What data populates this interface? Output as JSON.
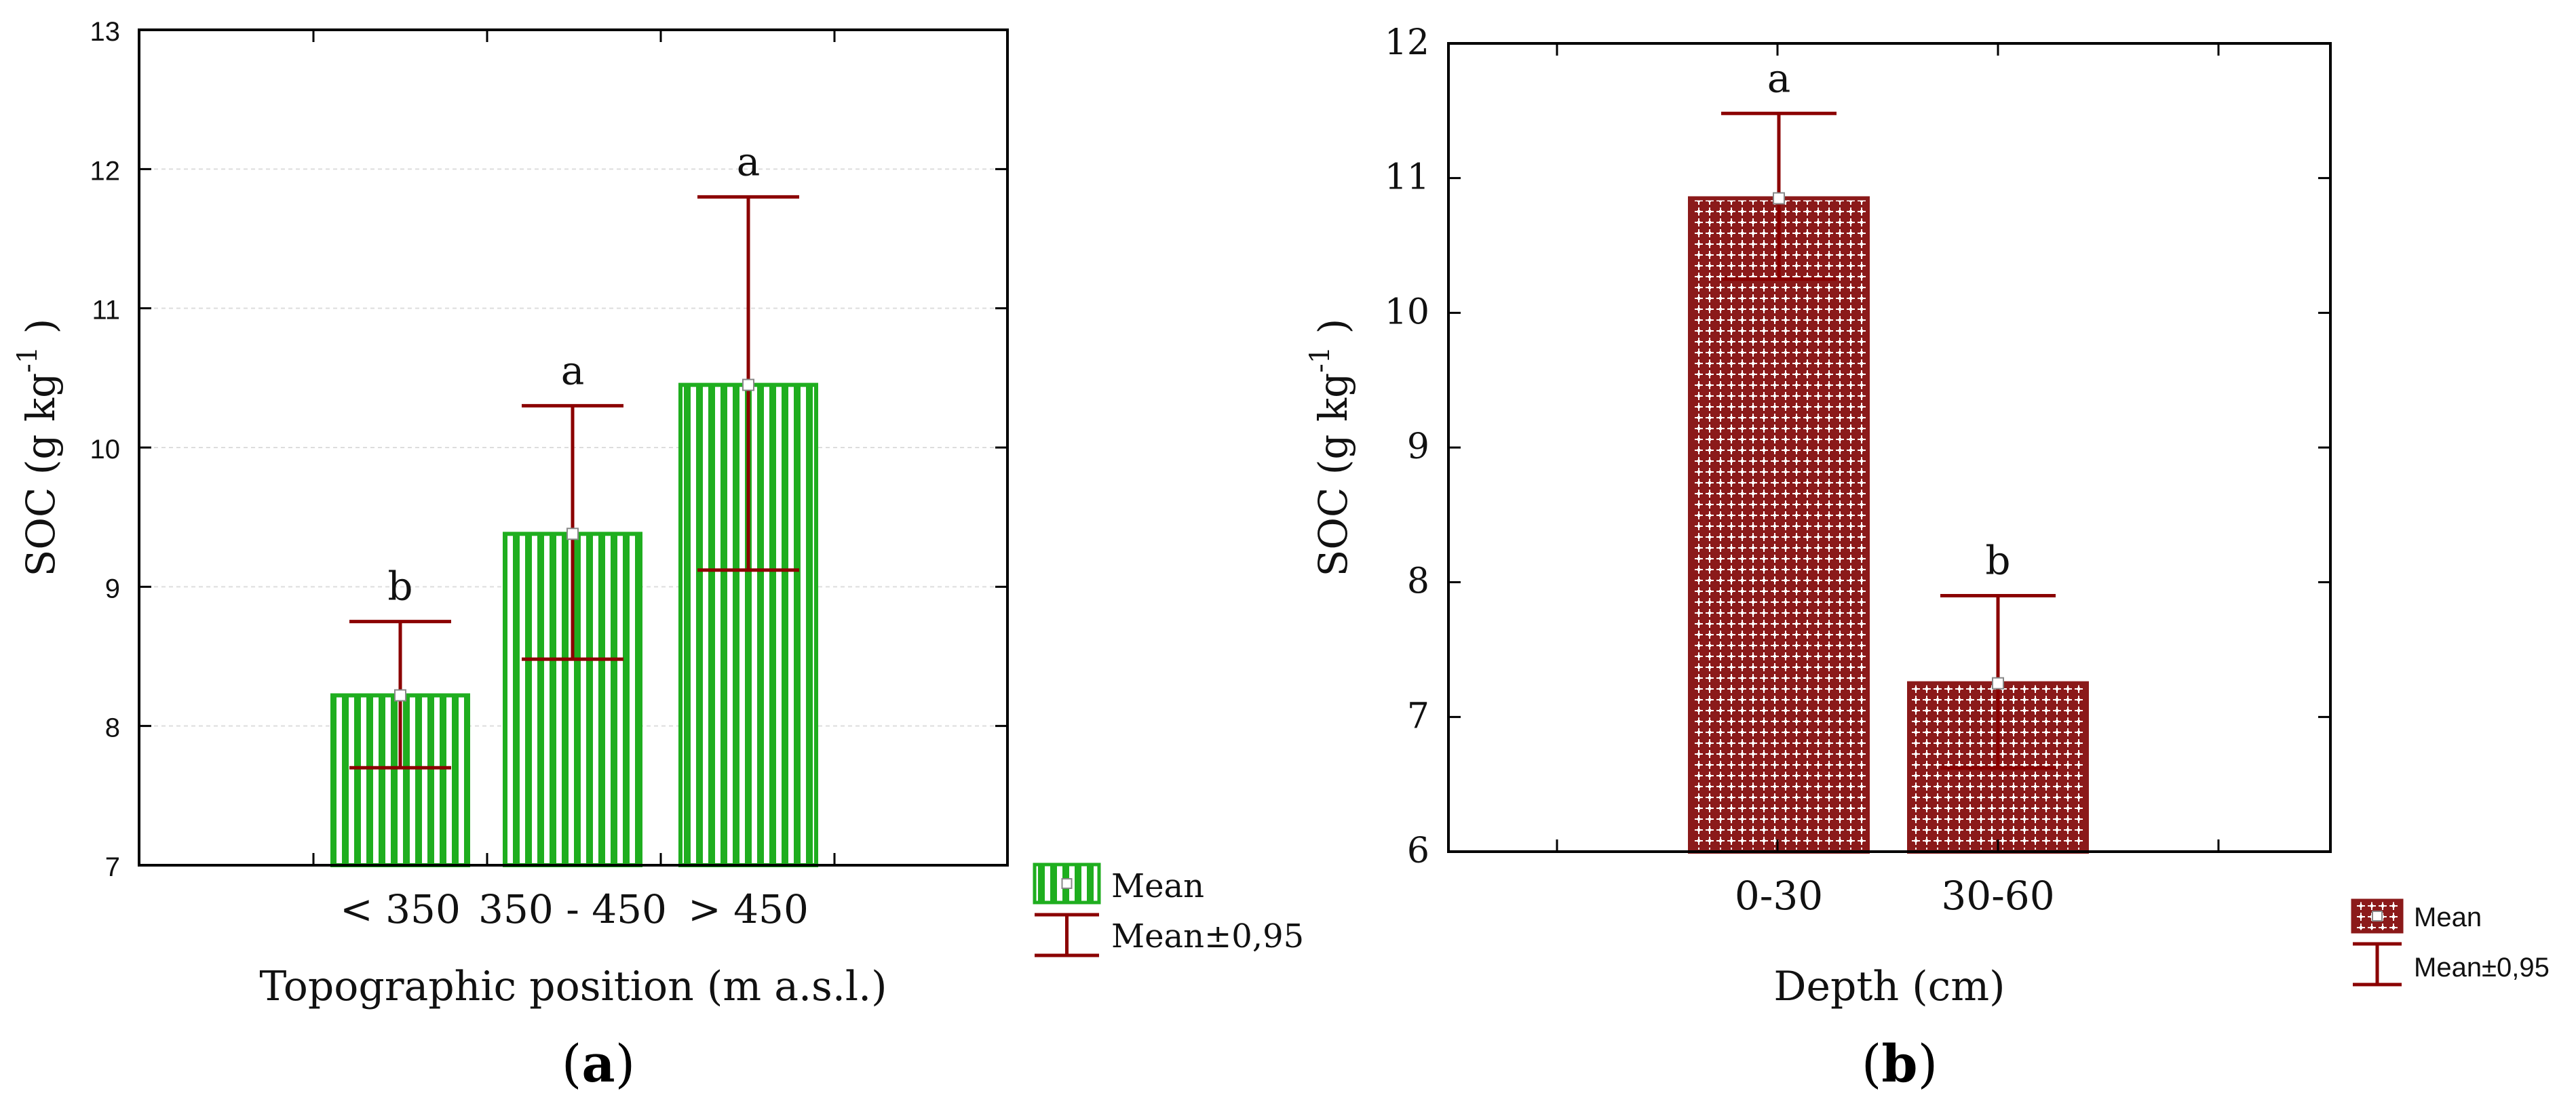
{
  "chart_data": [
    {
      "panel": "a",
      "type": "bar",
      "title": "",
      "xlabel": "Topographic position (m a.s.l.)",
      "ylabel": "SOC (g kg",
      "ylabel_sup": "-1",
      "ylabel_close": ")",
      "ylim": [
        7,
        13
      ],
      "yticks": [
        "7",
        "8",
        "9",
        "10",
        "11",
        "12",
        "13"
      ],
      "categories": [
        "< 350",
        "350 - 450",
        "> 450"
      ],
      "series": [
        {
          "name": "Mean",
          "values": [
            8.22,
            9.38,
            10.45
          ],
          "ci_low": [
            7.7,
            8.48,
            9.12
          ],
          "ci_high": [
            8.75,
            10.3,
            11.8
          ],
          "letters": [
            "b",
            "a",
            "a"
          ]
        }
      ],
      "legend": [
        "Mean",
        "Mean±0,95"
      ],
      "panel_label": "a",
      "bar_color": "#1fae1f",
      "error_color": "#8b0000",
      "grid": true
    },
    {
      "panel": "b",
      "type": "bar",
      "title": "",
      "xlabel": "Depth (cm)",
      "ylabel": "SOC (g kg",
      "ylabel_sup": "-1",
      "ylabel_close": ")",
      "ylim": [
        6,
        12
      ],
      "yticks": [
        "6",
        "7",
        "8",
        "9",
        "10",
        "11",
        "12"
      ],
      "categories": [
        "0-30",
        "30-60"
      ],
      "series": [
        {
          "name": "Mean",
          "values": [
            10.85,
            7.25
          ],
          "ci_low": [
            10.25,
            6.62
          ],
          "ci_high": [
            11.48,
            7.9
          ],
          "letters": [
            "a",
            "b"
          ]
        }
      ],
      "legend": [
        "Mean",
        "Mean±0,95"
      ],
      "panel_label": "b",
      "bar_color": "#8b1a1a",
      "error_color": "#8b0000",
      "grid": false
    }
  ]
}
